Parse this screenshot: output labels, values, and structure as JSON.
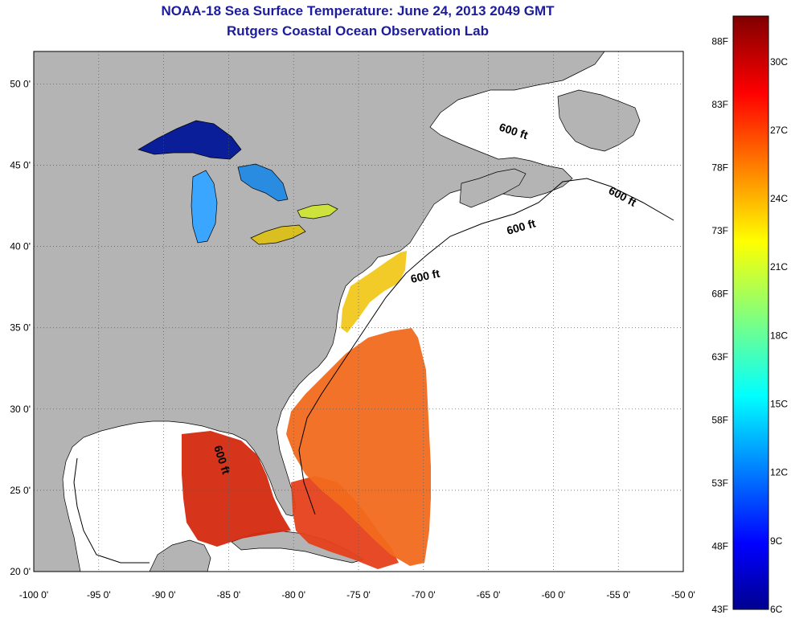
{
  "title": "NOAA-18 Sea Surface Temperature:  June 24, 2013 2049 GMT",
  "subtitle": "Rutgers Coastal Ocean Observation Lab",
  "map": {
    "lon_range": [
      -100,
      -50
    ],
    "lat_range": [
      20,
      52
    ],
    "x_ticks": [
      "-100 0'",
      "-95 0'",
      "-90 0'",
      "-85 0'",
      "-80 0'",
      "-75 0'",
      "-70 0'",
      "-65 0'",
      "-60 0'",
      "-55 0'",
      "-50 0'"
    ],
    "y_ticks": [
      "20 0'",
      "25 0'",
      "30 0'",
      "35 0'",
      "40 0'",
      "45 0'",
      "50 0'"
    ],
    "grid": "dotted",
    "land_color": "#b4b4b4",
    "no_data_color": "#ffffff",
    "contour_labels": [
      "600 ft",
      "600 ft",
      "600 ft",
      "600 ft",
      "600 ft"
    ]
  },
  "colorbar": {
    "range_c": [
      6,
      32
    ],
    "range_f": [
      43,
      90
    ],
    "fahrenheit_labels": [
      "88F",
      "83F",
      "78F",
      "73F",
      "68F",
      "63F",
      "58F",
      "53F",
      "48F",
      "43F"
    ],
    "celsius_labels": [
      "30C",
      "27C",
      "24C",
      "21C",
      "18C",
      "15C",
      "12C",
      "9C",
      "6C"
    ],
    "colormap": "jet"
  }
}
